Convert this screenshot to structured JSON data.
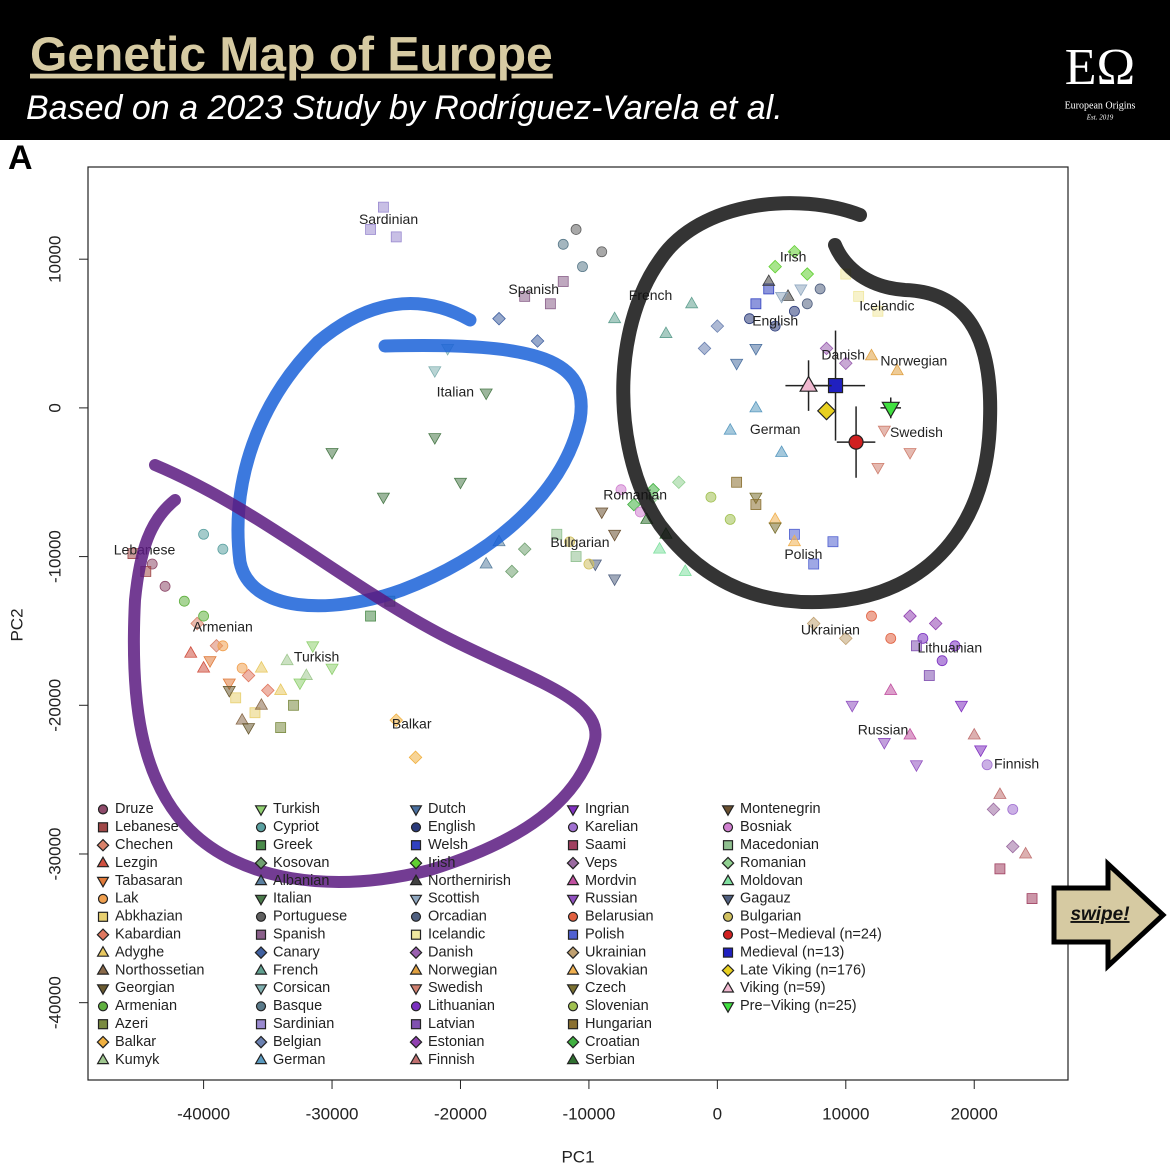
{
  "header": {
    "title": "Genetic Map of Europe",
    "subtitle": "Based on a 2023 Study by Rodríguez-Varela et al.",
    "logo": "EΩ",
    "logo_name": "European Origins",
    "logo_est": "Est. 2019",
    "panel": "A",
    "swipe": "swipe!"
  },
  "chart_data": {
    "type": "scatter",
    "xlabel": "PC1",
    "ylabel": "PC2",
    "xlim": [
      -49000,
      27300
    ],
    "ylim": [
      -45200,
      16200
    ],
    "xticks": [
      -40000,
      -30000,
      -20000,
      -10000,
      0,
      10000,
      20000
    ],
    "yticks": [
      -40000,
      -30000,
      -20000,
      -10000,
      0,
      10000
    ],
    "legend": "bottom-left",
    "series": [
      {
        "name": "Druze",
        "color": "#8e4a6a",
        "marker": "circle",
        "x": [
          -44000,
          -43000
        ],
        "y": [
          -10500,
          -12000
        ]
      },
      {
        "name": "Lebanese",
        "color": "#a04848",
        "marker": "square",
        "x": [
          -45500,
          -44500
        ],
        "y": [
          -9800,
          -11000
        ]
      },
      {
        "name": "Chechen",
        "color": "#d9826a",
        "marker": "diamond",
        "x": [
          -40500,
          -39000
        ],
        "y": [
          -14500,
          -16000
        ]
      },
      {
        "name": "Lezgin",
        "color": "#d05040",
        "marker": "triangle-up",
        "x": [
          -41000,
          -40000
        ],
        "y": [
          -16500,
          -17500
        ]
      },
      {
        "name": "Tabasaran",
        "color": "#e07a3a",
        "marker": "triangle-down",
        "x": [
          -39500,
          -38000
        ],
        "y": [
          -17000,
          -18500
        ]
      },
      {
        "name": "Lak",
        "color": "#f0a050",
        "marker": "circle",
        "x": [
          -38500,
          -37000
        ],
        "y": [
          -16000,
          -17500
        ]
      },
      {
        "name": "Abkhazian",
        "color": "#e8d070",
        "marker": "square",
        "x": [
          -37500,
          -36000
        ],
        "y": [
          -19500,
          -20500
        ]
      },
      {
        "name": "Kabardian",
        "color": "#e07860",
        "marker": "diamond",
        "x": [
          -36500,
          -35000
        ],
        "y": [
          -18000,
          -19000
        ]
      },
      {
        "name": "Adyghe",
        "color": "#e8c860",
        "marker": "triangle-up",
        "x": [
          -35500,
          -34000
        ],
        "y": [
          -17500,
          -19000
        ]
      },
      {
        "name": "Northossetian",
        "color": "#8a6a4a",
        "marker": "triangle-up",
        "x": [
          -37000,
          -35500
        ],
        "y": [
          -21000,
          -20000
        ]
      },
      {
        "name": "Georgian",
        "color": "#6a5a30",
        "marker": "triangle-down",
        "x": [
          -38000,
          -36500
        ],
        "y": [
          -19000,
          -21500
        ]
      },
      {
        "name": "Armenian",
        "color": "#60b040",
        "marker": "circle",
        "x": [
          -41500,
          -40000
        ],
        "y": [
          -13000,
          -14000
        ]
      },
      {
        "name": "Azeri",
        "color": "#7a8a40",
        "marker": "square",
        "x": [
          -34000,
          -33000
        ],
        "y": [
          -21500,
          -20000
        ]
      },
      {
        "name": "Balkar",
        "color": "#f0b040",
        "marker": "diamond",
        "x": [
          -25000,
          -23500
        ],
        "y": [
          -21000,
          -23500
        ]
      },
      {
        "name": "Kumyk",
        "color": "#a0c890",
        "marker": "triangle-up",
        "x": [
          -33500,
          -32000
        ],
        "y": [
          -17000,
          -18000
        ]
      },
      {
        "name": "Turkish",
        "color": "#90d070",
        "marker": "triangle-down",
        "x": [
          -31500,
          -30000,
          -32500
        ],
        "y": [
          -16000,
          -17500,
          -18500
        ]
      },
      {
        "name": "Cypriot",
        "color": "#5aa0a0",
        "marker": "circle",
        "x": [
          -40000,
          -38500
        ],
        "y": [
          -8500,
          -9500
        ]
      },
      {
        "name": "Greek",
        "color": "#4a8a4a",
        "marker": "square",
        "x": [
          -27000,
          -25500
        ],
        "y": [
          -14000,
          -13000
        ]
      },
      {
        "name": "Kosovan",
        "color": "#70a070",
        "marker": "diamond",
        "x": [
          -16000,
          -15000
        ],
        "y": [
          -11000,
          -9500
        ]
      },
      {
        "name": "Albanian",
        "color": "#5a80a0",
        "marker": "triangle-up",
        "x": [
          -18000,
          -17000
        ],
        "y": [
          -10500,
          -9000
        ]
      },
      {
        "name": "Italian",
        "color": "#4a7a4a",
        "marker": "triangle-down",
        "x": [
          -30000,
          -22000,
          -18000,
          -26000,
          -20000
        ],
        "y": [
          -3000,
          -2000,
          1000,
          -6000,
          -5000
        ]
      },
      {
        "name": "Portuguese",
        "color": "#606060",
        "marker": "circle",
        "x": [
          -11000,
          -9000
        ],
        "y": [
          12000,
          10500
        ]
      },
      {
        "name": "Spanish",
        "color": "#8a608a",
        "marker": "square",
        "x": [
          -15000,
          -13000,
          -12000
        ],
        "y": [
          7500,
          7000,
          8500
        ]
      },
      {
        "name": "Canary",
        "color": "#4060a0",
        "marker": "diamond",
        "x": [
          -17000,
          -14000
        ],
        "y": [
          6000,
          4500
        ]
      },
      {
        "name": "French",
        "color": "#60a090",
        "marker": "triangle-up",
        "x": [
          -8000,
          -4000,
          -2000
        ],
        "y": [
          6000,
          5000,
          7000
        ]
      },
      {
        "name": "Corsican",
        "color": "#80b0b0",
        "marker": "triangle-down",
        "x": [
          -22000,
          -21000
        ],
        "y": [
          2500,
          4000
        ]
      },
      {
        "name": "Basque",
        "color": "#5a7a8a",
        "marker": "circle",
        "x": [
          -10500,
          -12000
        ],
        "y": [
          9500,
          11000
        ]
      },
      {
        "name": "Sardinian",
        "color": "#9a8ad0",
        "marker": "square",
        "x": [
          -27000,
          -26000,
          -25000
        ],
        "y": [
          12000,
          13500,
          11500
        ]
      },
      {
        "name": "Belgian",
        "color": "#6a80b0",
        "marker": "diamond",
        "x": [
          -1000,
          0
        ],
        "y": [
          4000,
          5500
        ]
      },
      {
        "name": "German",
        "color": "#5a9ac0",
        "marker": "triangle-up",
        "x": [
          1000,
          3000,
          5000
        ],
        "y": [
          -1500,
          0,
          -3000
        ]
      },
      {
        "name": "Dutch",
        "color": "#4a70a0",
        "marker": "triangle-down",
        "x": [
          1500,
          3000
        ],
        "y": [
          3000,
          4000
        ]
      },
      {
        "name": "English",
        "color": "#2a3a7a",
        "marker": "circle",
        "x": [
          2500,
          4500,
          6000
        ],
        "y": [
          6000,
          5500,
          6500
        ]
      },
      {
        "name": "Welsh",
        "color": "#3040c0",
        "marker": "square",
        "x": [
          3000,
          4000
        ],
        "y": [
          7000,
          8000
        ]
      },
      {
        "name": "Irish",
        "color": "#60d030",
        "marker": "diamond",
        "x": [
          4500,
          6000,
          7000
        ],
        "y": [
          9500,
          10500,
          9000
        ]
      },
      {
        "name": "Northernirish",
        "color": "#404040",
        "marker": "triangle-up",
        "x": [
          4000,
          5500
        ],
        "y": [
          8500,
          7500
        ]
      },
      {
        "name": "Scottish",
        "color": "#90a8c0",
        "marker": "triangle-down",
        "x": [
          5000,
          6500
        ],
        "y": [
          7500,
          8000
        ]
      },
      {
        "name": "Orcadian",
        "color": "#506080",
        "marker": "circle",
        "x": [
          7000,
          8000
        ],
        "y": [
          7000,
          8000
        ]
      },
      {
        "name": "Icelandic",
        "color": "#f0e8a0",
        "marker": "square",
        "x": [
          11000,
          12500,
          10000
        ],
        "y": [
          7500,
          6500,
          9000
        ]
      },
      {
        "name": "Danish",
        "color": "#9a60b0",
        "marker": "diamond",
        "x": [
          8500,
          10000
        ],
        "y": [
          4000,
          3000
        ]
      },
      {
        "name": "Norwegian",
        "color": "#e0a040",
        "marker": "triangle-up",
        "x": [
          12000,
          14000
        ],
        "y": [
          3500,
          2500
        ]
      },
      {
        "name": "Swedish",
        "color": "#d08070",
        "marker": "triangle-down",
        "x": [
          13000,
          15000,
          12500
        ],
        "y": [
          -1500,
          -3000,
          -4000
        ]
      },
      {
        "name": "Lithuanian",
        "color": "#7a30c0",
        "marker": "circle",
        "x": [
          16000,
          17500,
          18500
        ],
        "y": [
          -15500,
          -17000,
          -16000
        ]
      },
      {
        "name": "Latvian",
        "color": "#8050b0",
        "marker": "square",
        "x": [
          15500,
          16500
        ],
        "y": [
          -16000,
          -18000
        ]
      },
      {
        "name": "Estonian",
        "color": "#9040b0",
        "marker": "diamond",
        "x": [
          15000,
          17000
        ],
        "y": [
          -14000,
          -14500
        ]
      },
      {
        "name": "Finnish",
        "color": "#c07070",
        "marker": "triangle-up",
        "x": [
          20000,
          22000,
          24000
        ],
        "y": [
          -22000,
          -26000,
          -30000
        ]
      },
      {
        "name": "Ingrian",
        "color": "#8030c0",
        "marker": "triangle-down",
        "x": [
          19000,
          20500
        ],
        "y": [
          -20000,
          -23000
        ]
      },
      {
        "name": "Karelian",
        "color": "#a070d0",
        "marker": "circle",
        "x": [
          21000,
          23000
        ],
        "y": [
          -24000,
          -27000
        ]
      },
      {
        "name": "Saami",
        "color": "#a04060",
        "marker": "square",
        "x": [
          22000,
          24500
        ],
        "y": [
          -31000,
          -33000
        ]
      },
      {
        "name": "Veps",
        "color": "#9a6aa0",
        "marker": "diamond",
        "x": [
          21500,
          23000
        ],
        "y": [
          -27000,
          -29500
        ]
      },
      {
        "name": "Mordvin",
        "color": "#c050a0",
        "marker": "triangle-up",
        "x": [
          13500,
          15000
        ],
        "y": [
          -19000,
          -22000
        ]
      },
      {
        "name": "Russian",
        "color": "#9050c0",
        "marker": "triangle-down",
        "x": [
          10500,
          13000,
          15500
        ],
        "y": [
          -20000,
          -22500,
          -24000
        ]
      },
      {
        "name": "Belarusian",
        "color": "#e06040",
        "marker": "circle",
        "x": [
          12000,
          13500
        ],
        "y": [
          -14000,
          -15500
        ]
      },
      {
        "name": "Polish",
        "color": "#5060d0",
        "marker": "square",
        "x": [
          6000,
          7500,
          9000
        ],
        "y": [
          -8500,
          -10500,
          -9000
        ]
      },
      {
        "name": "Ukrainian",
        "color": "#c0a070",
        "marker": "diamond",
        "x": [
          7500,
          10000
        ],
        "y": [
          -14500,
          -15500
        ]
      },
      {
        "name": "Slovakian",
        "color": "#f0b050",
        "marker": "triangle-up",
        "x": [
          4500,
          6000
        ],
        "y": [
          -7500,
          -9000
        ]
      },
      {
        "name": "Czech",
        "color": "#7a7030",
        "marker": "triangle-down",
        "x": [
          3000,
          4500
        ],
        "y": [
          -6000,
          -8000
        ]
      },
      {
        "name": "Slovenian",
        "color": "#a0c050",
        "marker": "circle",
        "x": [
          -500,
          1000
        ],
        "y": [
          -6000,
          -7500
        ]
      },
      {
        "name": "Hungarian",
        "color": "#8a7030",
        "marker": "square",
        "x": [
          1500,
          3000
        ],
        "y": [
          -5000,
          -6500
        ]
      },
      {
        "name": "Croatian",
        "color": "#40b040",
        "marker": "diamond",
        "x": [
          -6500,
          -5000
        ],
        "y": [
          -6500,
          -5500
        ]
      },
      {
        "name": "Serbian",
        "color": "#307030",
        "marker": "triangle-up",
        "x": [
          -5500,
          -4000
        ],
        "y": [
          -7500,
          -8500
        ]
      },
      {
        "name": "Montenegrin",
        "color": "#6a5030",
        "marker": "triangle-down",
        "x": [
          -9000,
          -8000
        ],
        "y": [
          -7000,
          -8500
        ]
      },
      {
        "name": "Bosniak",
        "color": "#d080d0",
        "marker": "circle",
        "x": [
          -7500,
          -6000
        ],
        "y": [
          -5500,
          -7000
        ]
      },
      {
        "name": "Macedonian",
        "color": "#90c090",
        "marker": "square",
        "x": [
          -12500,
          -11000
        ],
        "y": [
          -8500,
          -10000
        ]
      },
      {
        "name": "Romanian",
        "color": "#90d090",
        "marker": "diamond",
        "x": [
          -5000,
          -3000
        ],
        "y": [
          -6000,
          -5000
        ]
      },
      {
        "name": "Moldovan",
        "color": "#80e0a0",
        "marker": "triangle-up",
        "x": [
          -4500,
          -2500
        ],
        "y": [
          -9500,
          -11000
        ]
      },
      {
        "name": "Gagauz",
        "color": "#506080",
        "marker": "triangle-down",
        "x": [
          -9500,
          -8000
        ],
        "y": [
          -10500,
          -11500
        ]
      },
      {
        "name": "Bulgarian",
        "color": "#d0c060",
        "marker": "circle",
        "x": [
          -11500,
          -10000
        ],
        "y": [
          -9000,
          -10500
        ]
      },
      {
        "name": "Post−Medieval (n=24)",
        "color": "#d02020",
        "marker": "circle",
        "x": [
          10800
        ],
        "y": [
          -2300
        ],
        "xerr": [
          1500
        ],
        "yerr": [
          2400
        ]
      },
      {
        "name": "Medieval (n=13)",
        "color": "#2020c0",
        "marker": "square",
        "x": [
          9200
        ],
        "y": [
          1500
        ],
        "xerr": [
          2300
        ],
        "yerr": [
          3700
        ]
      },
      {
        "name": "Late Viking (n=176)",
        "color": "#e8d020",
        "marker": "diamond",
        "x": [
          8500
        ],
        "y": [
          -200
        ],
        "xerr": [
          600
        ],
        "yerr": [
          600
        ]
      },
      {
        "name": "Viking (n=59)",
        "color": "#f0b8d0",
        "marker": "triangle-up",
        "x": [
          7100
        ],
        "y": [
          1500
        ],
        "xerr": [
          1800
        ],
        "yerr": [
          1700
        ]
      },
      {
        "name": "Pre−Viking (n=25)",
        "color": "#40e040",
        "marker": "triangle-down",
        "x": [
          13500
        ],
        "y": [
          0
        ],
        "xerr": [
          800
        ],
        "yerr": [
          700
        ]
      }
    ],
    "annotations": [
      {
        "text": "Sardinian",
        "x": -25600,
        "y": 12600
      },
      {
        "text": "Spanish",
        "x": -14300,
        "y": 7900
      },
      {
        "text": "French",
        "x": -5200,
        "y": 7500
      },
      {
        "text": "Irish",
        "x": 5900,
        "y": 10100
      },
      {
        "text": "English",
        "x": 4500,
        "y": 5800
      },
      {
        "text": "Icelandic",
        "x": 13200,
        "y": 6800
      },
      {
        "text": "Danish",
        "x": 9800,
        "y": 3500
      },
      {
        "text": "Norwegian",
        "x": 15300,
        "y": 3100
      },
      {
        "text": "Italian",
        "x": -20400,
        "y": 1000
      },
      {
        "text": "German",
        "x": 4500,
        "y": -1500
      },
      {
        "text": "Swedish",
        "x": 15500,
        "y": -1700
      },
      {
        "text": "Romanian",
        "x": -6400,
        "y": -5900
      },
      {
        "text": "Bulgarian",
        "x": -10700,
        "y": -9100
      },
      {
        "text": "Lebanese",
        "x": -44600,
        "y": -9600
      },
      {
        "text": "Polish",
        "x": 6700,
        "y": -9900
      },
      {
        "text": "Ukrainian",
        "x": 8800,
        "y": -15000
      },
      {
        "text": "Armenian",
        "x": -38500,
        "y": -14800
      },
      {
        "text": "Lithuanian",
        "x": 18100,
        "y": -16200
      },
      {
        "text": "Turkish",
        "x": -31200,
        "y": -16800
      },
      {
        "text": "Balkar",
        "x": -23800,
        "y": -21300
      },
      {
        "text": "Russian",
        "x": 12900,
        "y": -21700
      },
      {
        "text": "Finnish",
        "x": 23300,
        "y": -24000
      }
    ]
  }
}
